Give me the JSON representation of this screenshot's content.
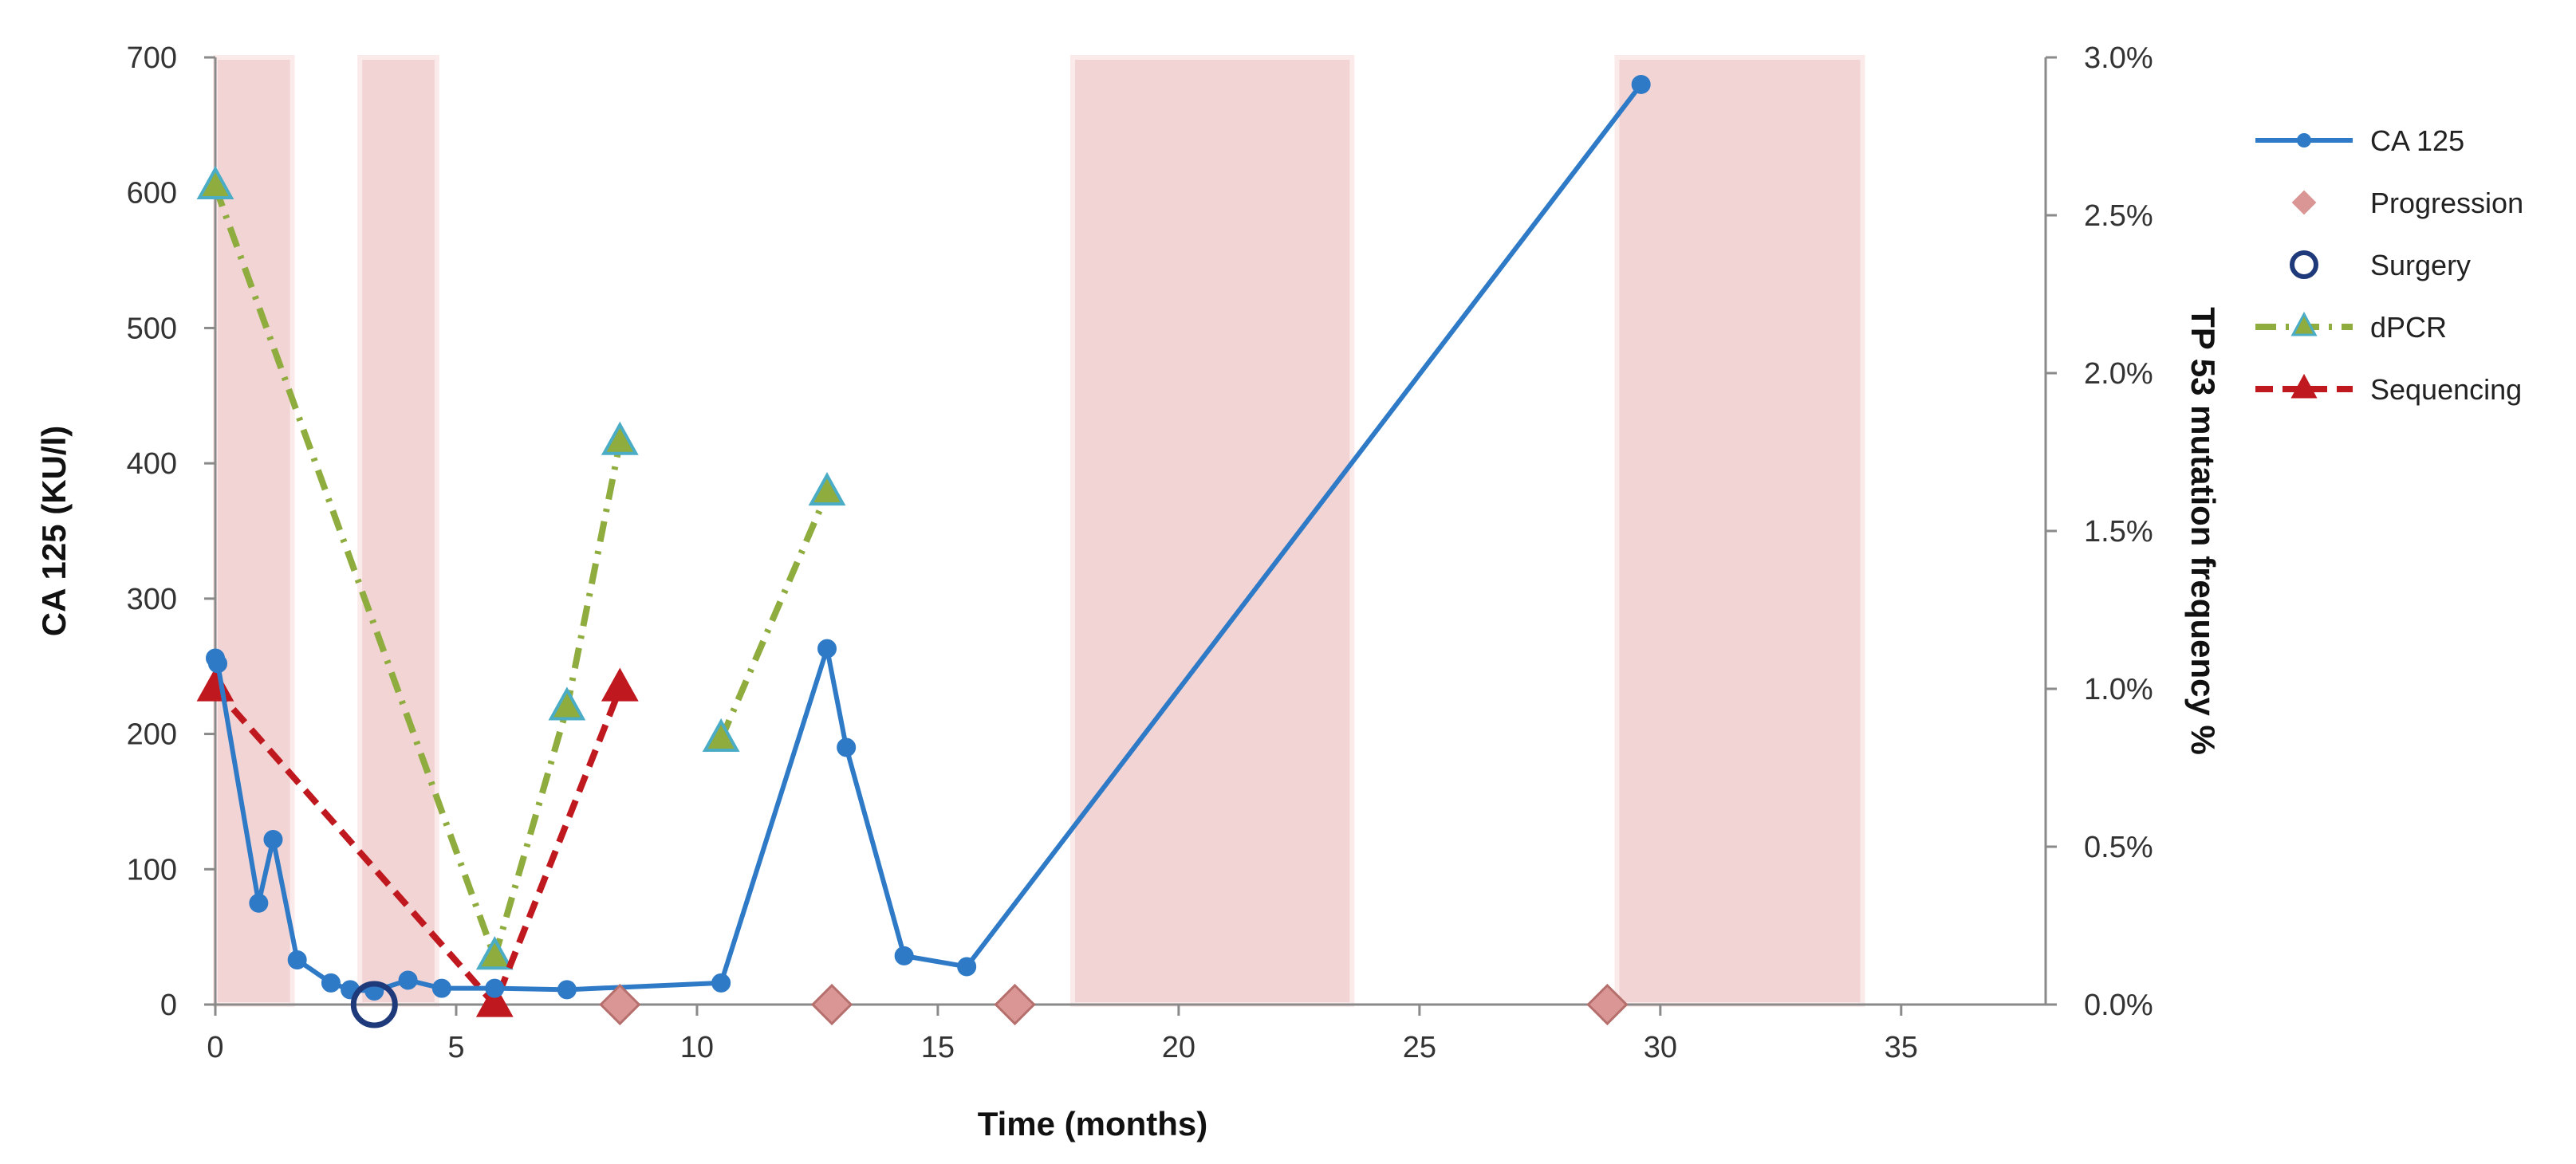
{
  "chart_data": {
    "type": "line",
    "xlabel": "Time (months)",
    "ylabel": "CA 125 (KU/l)",
    "y2label": "TP 53 mutation frequency %",
    "xlim": [
      0,
      38
    ],
    "ylim": [
      0,
      700
    ],
    "y2lim": [
      0,
      0.03
    ],
    "x_ticks": [
      0,
      5,
      10,
      15,
      20,
      25,
      30,
      35
    ],
    "y_ticks": [
      0,
      100,
      200,
      300,
      400,
      500,
      600,
      700
    ],
    "y2_ticks": [
      0,
      0.005,
      0.01,
      0.015,
      0.02,
      0.025,
      0.03
    ],
    "y2_tick_labels": [
      "0.0%",
      "0.5%",
      "1.0%",
      "1.5%",
      "2.0%",
      "2.5%",
      "3.0%"
    ],
    "grid": false,
    "legend_position": "right",
    "shaded_periods": [
      [
        0,
        1.6
      ],
      [
        3.0,
        4.6
      ],
      [
        17.8,
        23.6
      ],
      [
        29.1,
        34.2
      ]
    ],
    "shade_color": "#f2d4d4",
    "series": [
      {
        "name": "CA 125",
        "axis": "left",
        "style": "solid",
        "color": "#2e7ac7",
        "marker": "circle",
        "x": [
          0,
          0.05,
          0.9,
          1.2,
          1.7,
          2.4,
          2.8,
          3.3,
          4.0,
          4.7,
          5.8,
          7.3,
          10.5,
          12.7,
          13.1,
          14.3,
          15.6,
          29.6
        ],
        "y": [
          256,
          252,
          75,
          122,
          33,
          16,
          11,
          10,
          18,
          12,
          12,
          11,
          16,
          263,
          190,
          36,
          28,
          680
        ]
      },
      {
        "name": "Progression",
        "axis": "left",
        "style": "marker",
        "color": "#d99694",
        "marker": "diamond",
        "x": [
          8.4,
          12.8,
          16.6,
          28.9
        ],
        "y": [
          0,
          0,
          0,
          0
        ]
      },
      {
        "name": "Surgery",
        "axis": "left",
        "style": "marker",
        "color": "#1f3a7a",
        "marker": "open-circle",
        "x": [
          3.3
        ],
        "y": [
          0
        ]
      },
      {
        "name": "dPCR",
        "axis": "right",
        "style": "dash-dot",
        "color": "#8fac3e",
        "marker": "triangle",
        "marker_fill": "#8fac3e",
        "marker_edge": "#4bacc6",
        "segments": [
          {
            "x": [
              0,
              5.8,
              7.3,
              8.4
            ],
            "y": [
              0.0259,
              0.0015,
              0.0094,
              0.0178
            ]
          },
          {
            "x": [
              10.5,
              12.7
            ],
            "y": [
              0.0084,
              0.0162
            ]
          }
        ]
      },
      {
        "name": "Sequencing",
        "axis": "right",
        "style": "dashed",
        "color": "#c0181f",
        "marker": "triangle",
        "x": [
          0,
          5.8,
          8.4
        ],
        "y": [
          0.01,
          0.0,
          0.01
        ]
      }
    ]
  }
}
